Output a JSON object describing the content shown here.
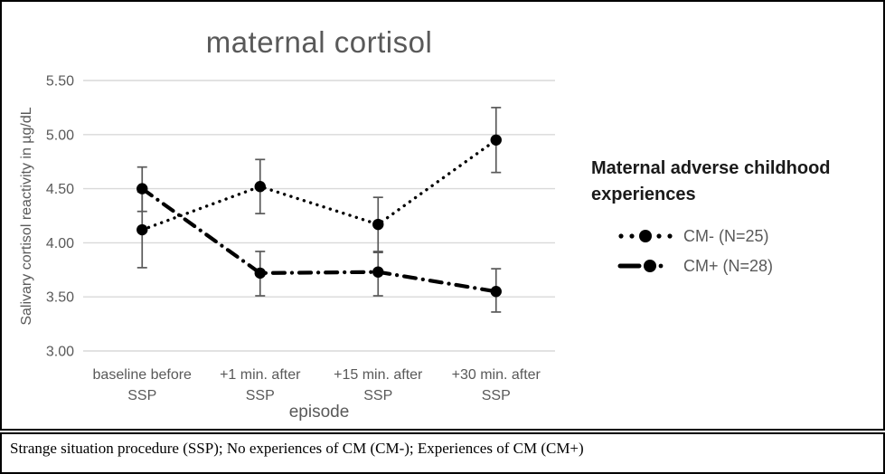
{
  "chart_data": {
    "type": "line",
    "title": "maternal cortisol",
    "xlabel": "episode",
    "ylabel": "Salivary cortisol reactivity in µg/dL",
    "categories": [
      "baseline before SSP",
      "+1 min. after SSP",
      "+15 min. after SSP",
      "+30 min. after SSP"
    ],
    "ytick_labels": [
      "5.50",
      "5.00",
      "4.50",
      "4.00",
      "3.50",
      "3.00"
    ],
    "ylim": [
      3.0,
      5.5
    ],
    "grid": true,
    "legend_position": "right",
    "series": [
      {
        "name": "CM- (N=25)",
        "style": "dotted",
        "values": [
          4.12,
          4.52,
          4.17,
          4.95
        ],
        "error_low": [
          3.77,
          4.27,
          3.92,
          4.65
        ],
        "error_high": [
          4.47,
          4.77,
          4.42,
          5.25
        ]
      },
      {
        "name": "CM+ (N=28)",
        "style": "dash-dot",
        "values": [
          4.5,
          3.72,
          3.73,
          3.55
        ],
        "error_low": [
          4.29,
          3.51,
          3.51,
          3.36
        ],
        "error_high": [
          4.7,
          3.92,
          3.91,
          3.76
        ]
      }
    ]
  },
  "legend": {
    "title": "Maternal adverse childhood experiences"
  },
  "caption": {
    "text": "Strange situation procedure (SSP); No experiences of CM (CM-); Experiences of CM (CM+)"
  },
  "colors": {
    "series": "#000000",
    "grid": "#d9d9d9",
    "axis_text": "#595959",
    "title_text": "#595959",
    "error_bar": "#595959",
    "legend_text": "#595959",
    "legend_title": "#1a1a1a"
  }
}
